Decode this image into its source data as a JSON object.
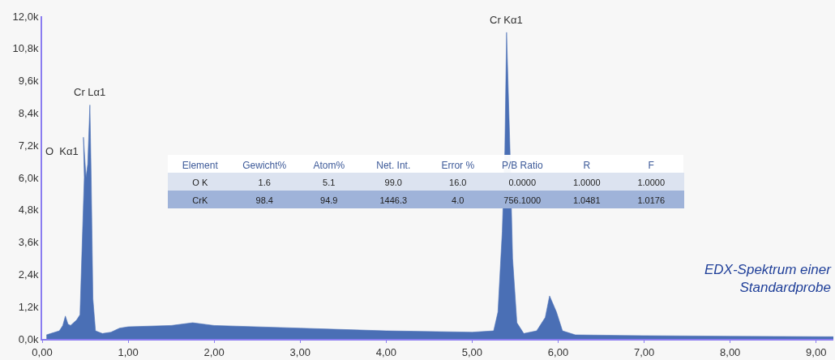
{
  "chart_data": {
    "type": "area",
    "x": [
      0.05,
      0.1,
      0.2,
      0.24,
      0.27,
      0.3,
      0.33,
      0.4,
      0.44,
      0.47,
      0.49,
      0.48,
      0.51,
      0.53,
      0.555,
      0.57,
      0.59,
      0.62,
      0.7,
      0.8,
      0.9,
      1.0,
      1.5,
      1.75,
      2.0,
      3.0,
      4.0,
      5.0,
      5.25,
      5.3,
      5.35,
      5.38,
      5.4,
      5.44,
      5.47,
      5.52,
      5.6,
      5.75,
      5.85,
      5.9,
      5.98,
      6.05,
      6.2,
      7.0,
      8.0,
      9.2
    ],
    "series": [
      {
        "color": "#4a6fb5",
        "values": [
          150,
          200,
          300,
          500,
          850,
          550,
          500,
          700,
          900,
          4000,
          6000,
          7500,
          6000,
          6500,
          8700,
          6000,
          1500,
          300,
          200,
          250,
          400,
          450,
          500,
          600,
          500,
          400,
          300,
          250,
          300,
          1000,
          4000,
          7000,
          11400,
          7000,
          3000,
          600,
          200,
          300,
          800,
          1600,
          1000,
          300,
          150,
          120,
          100,
          80
        ]
      }
    ],
    "xlim": [
      0,
      9.2
    ],
    "xticks": [
      {
        "value": 0,
        "label": "0,00"
      },
      {
        "value": 1,
        "label": "1,00"
      },
      {
        "value": 2,
        "label": "2,00"
      },
      {
        "value": 3,
        "label": "3,00"
      },
      {
        "value": 4,
        "label": "4,00"
      },
      {
        "value": 5,
        "label": "5,00"
      },
      {
        "value": 6,
        "label": "6,00"
      },
      {
        "value": 7,
        "label": "7,00"
      },
      {
        "value": 8,
        "label": "8,00"
      },
      {
        "value": 9,
        "label": "9,00"
      }
    ],
    "ylim": [
      0,
      12000
    ],
    "yticks": [
      {
        "value": 0,
        "label": "0,0k"
      },
      {
        "value": 1200,
        "label": "1,2k"
      },
      {
        "value": 2400,
        "label": "2,4k"
      },
      {
        "value": 3600,
        "label": "3,6k"
      },
      {
        "value": 4800,
        "label": "4,8k"
      },
      {
        "value": 6000,
        "label": "6,0k"
      },
      {
        "value": 7200,
        "label": "7,2k"
      },
      {
        "value": 8400,
        "label": "8,4k"
      },
      {
        "value": 9600,
        "label": "9,6k"
      },
      {
        "value": 10800,
        "label": "10,8k"
      },
      {
        "value": 12000,
        "label": "12,0k"
      }
    ],
    "annotations": [
      {
        "text": "O  Kα1",
        "x": 0.48,
        "y": 7500
      },
      {
        "text": "Cr Lα1",
        "x": 0.555,
        "y": 8700
      },
      {
        "text": "Cr Kα1",
        "x": 5.4,
        "y": 11400
      },
      "Element",
      "Gewicht%",
      "Atom%",
      "Net. Int.",
      "Error %",
      "P/B Ratio",
      "R",
      "F",
      "O K",
      "1.6",
      "5.1",
      "99.0",
      "16.0",
      "0.0000",
      "1.0000",
      "1.0000",
      "CrK",
      "98.4",
      "94.9",
      "1446.3",
      "4.0",
      "756.1000",
      "1.0481",
      "1.0176",
      "EDX-Spektrum einer\nStandardprobe"
    ]
  }
}
